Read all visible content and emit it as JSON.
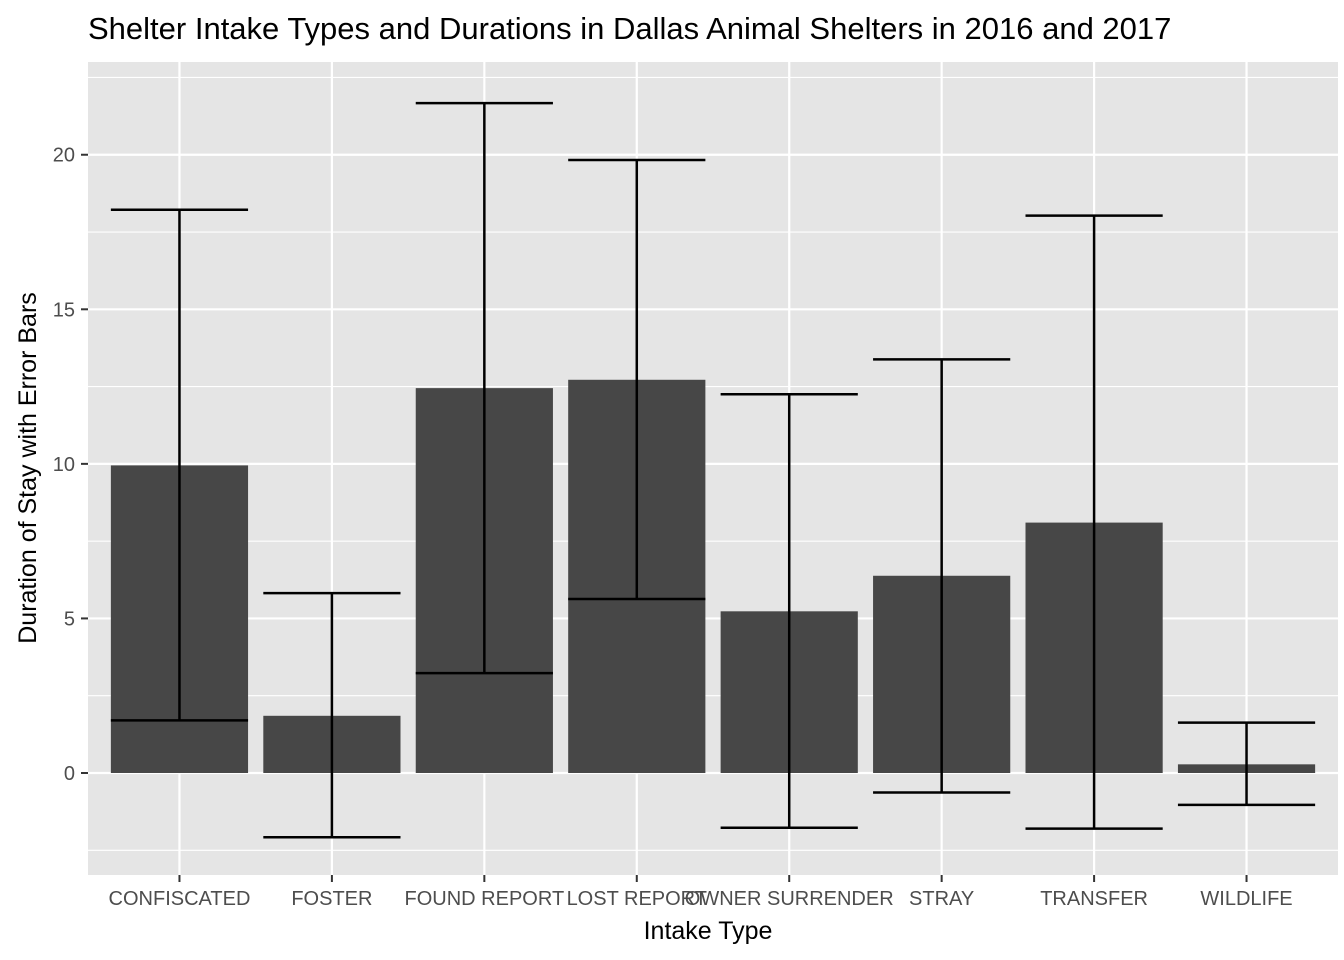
{
  "chart_data": {
    "type": "bar",
    "title": "Shelter Intake Types and Durations in Dallas Animal Shelters in 2016 and 2017",
    "xlabel": "Intake Type",
    "ylabel": "Duration of Stay with Error Bars",
    "categories": [
      "CONFISCATED",
      "FOSTER",
      "FOUND REPORT",
      "LOST REPORT",
      "OWNER SURRENDER",
      "STRAY",
      "TRANSFER",
      "WILDLIFE"
    ],
    "values": [
      9.95,
      1.85,
      12.45,
      12.72,
      5.23,
      6.38,
      8.1,
      0.28
    ],
    "error_low": [
      1.7,
      -2.08,
      3.23,
      5.63,
      -1.77,
      -0.63,
      -1.8,
      -1.03
    ],
    "error_high": [
      18.22,
      5.82,
      21.67,
      19.83,
      12.25,
      13.38,
      18.03,
      1.63
    ],
    "yticks": [
      0,
      5,
      10,
      15,
      20
    ],
    "ylim": [
      -3.3,
      23
    ],
    "grid": true,
    "colors": {
      "bar": "#474747",
      "panel": "#e5e5e5",
      "grid": "#ffffff",
      "errorbar": "#000000"
    }
  }
}
